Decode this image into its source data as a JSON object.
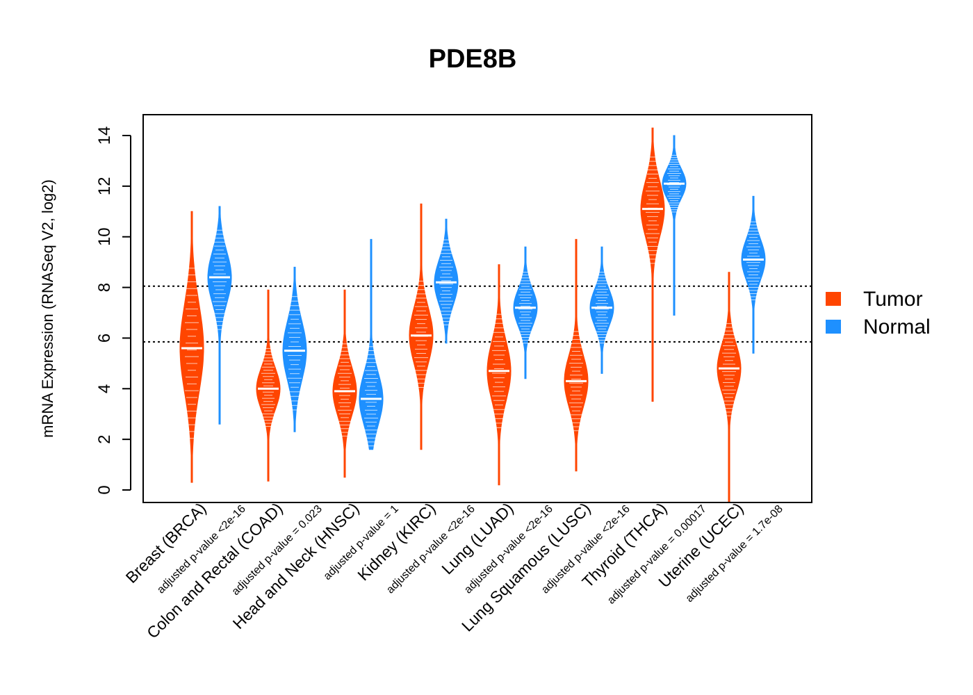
{
  "chart_data": {
    "type": "violin",
    "title": "PDE8B",
    "xlabel": "",
    "ylabel": "mRNA Expression (RNASeq V2, log2)",
    "ylim": [
      -0.5,
      14.8
    ],
    "yticks": [
      0,
      2,
      4,
      6,
      8,
      10,
      12,
      14
    ],
    "reference_lines": [
      8.05,
      5.85
    ],
    "series": [
      {
        "name": "Tumor",
        "color": "#FF4500"
      },
      {
        "name": "Normal",
        "color": "#1E90FF"
      }
    ],
    "categories": [
      {
        "label": "Breast (BRCA)",
        "pvalue": "adjusted p-value <2e-16",
        "tumor": {
          "min": 0.3,
          "max": 11.0,
          "median": 5.6,
          "q1": 4.2,
          "q3": 6.6
        },
        "normal": {
          "min": 2.6,
          "max": 11.2,
          "median": 8.4,
          "q1": 7.6,
          "q3": 9.0
        }
      },
      {
        "label": "Colon and Rectal (COAD)",
        "pvalue": "adjusted p-value = 0.023",
        "tumor": {
          "min": 0.35,
          "max": 7.9,
          "median": 4.0,
          "q1": 3.5,
          "q3": 4.6
        },
        "normal": {
          "min": 2.3,
          "max": 8.8,
          "median": 5.5,
          "q1": 4.6,
          "q3": 6.2
        }
      },
      {
        "label": "Head and Neck (HNSC)",
        "pvalue": "adjusted p-value = 1",
        "tumor": {
          "min": 0.5,
          "max": 7.9,
          "median": 3.9,
          "q1": 3.3,
          "q3": 4.6
        },
        "normal": {
          "min": 1.6,
          "max": 9.9,
          "median": 3.6,
          "q1": 3.0,
          "q3": 4.4
        }
      },
      {
        "label": "Kidney (KIRC)",
        "pvalue": "adjusted p-value <2e-16",
        "tumor": {
          "min": 1.6,
          "max": 11.3,
          "median": 6.1,
          "q1": 5.4,
          "q3": 6.9
        },
        "normal": {
          "min": 5.8,
          "max": 10.7,
          "median": 8.2,
          "q1": 7.6,
          "q3": 8.8
        }
      },
      {
        "label": "Lung (LUAD)",
        "pvalue": "adjusted p-value <2e-16",
        "tumor": {
          "min": 0.2,
          "max": 8.9,
          "median": 4.7,
          "q1": 3.9,
          "q3": 5.5
        },
        "normal": {
          "min": 4.4,
          "max": 9.6,
          "median": 7.2,
          "q1": 6.7,
          "q3": 7.7
        }
      },
      {
        "label": "Lung Squamous (LUSC)",
        "pvalue": "adjusted p-value <2e-16",
        "tumor": {
          "min": 0.75,
          "max": 9.9,
          "median": 4.3,
          "q1": 3.6,
          "q3": 5.0
        },
        "normal": {
          "min": 4.6,
          "max": 9.6,
          "median": 7.2,
          "q1": 6.7,
          "q3": 7.7
        }
      },
      {
        "label": "Thyroid (THCA)",
        "pvalue": "adjusted p-value = 0.00017",
        "tumor": {
          "min": 3.5,
          "max": 14.3,
          "median": 11.1,
          "q1": 10.3,
          "q3": 11.8
        },
        "normal": {
          "min": 6.9,
          "max": 14.0,
          "median": 12.1,
          "q1": 11.7,
          "q3": 12.5
        }
      },
      {
        "label": "Uterine (UCEC)",
        "pvalue": "adjusted p-value = 1.7e-08",
        "tumor": {
          "min": -0.5,
          "max": 8.6,
          "median": 4.8,
          "q1": 4.1,
          "q3": 5.4
        },
        "normal": {
          "min": 5.4,
          "max": 11.6,
          "median": 9.1,
          "q1": 8.5,
          "q3": 9.6
        }
      }
    ],
    "legend": {
      "position": "right",
      "entries": [
        "Tumor",
        "Normal"
      ]
    }
  }
}
